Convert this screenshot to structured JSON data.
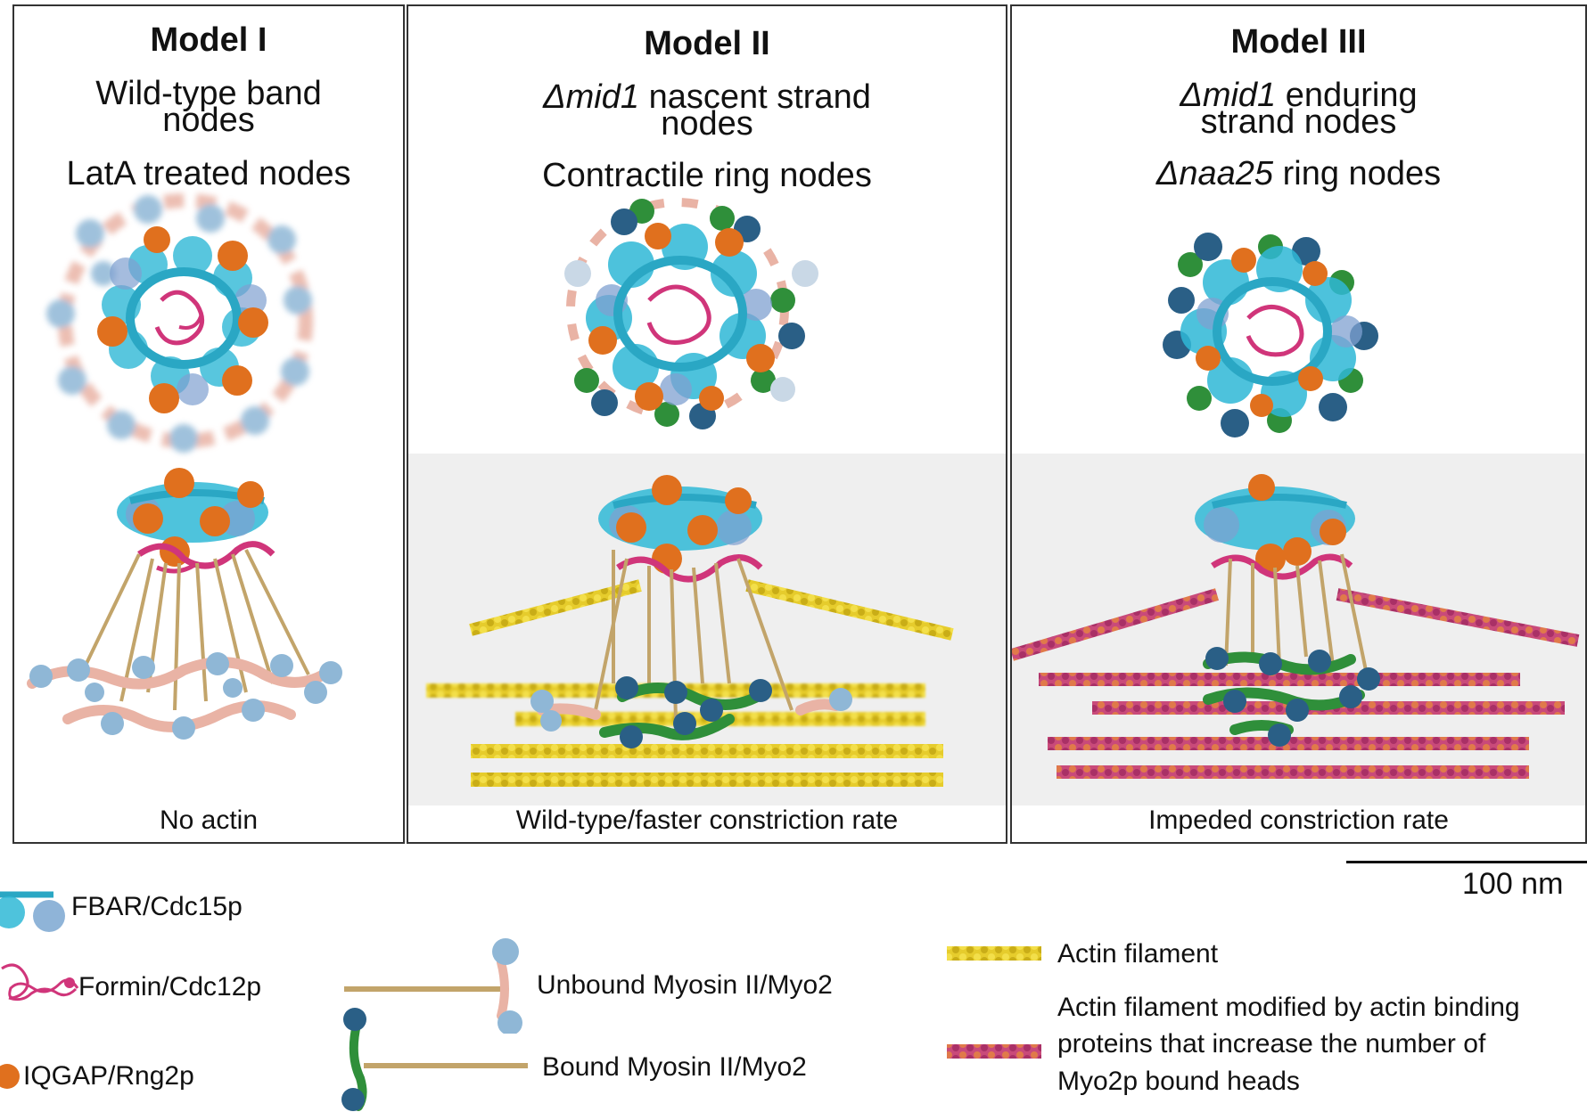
{
  "panels": [
    {
      "title": "Model I",
      "line1": "Wild-type band",
      "line2": "nodes",
      "line3": "LatA treated nodes",
      "footer": "No actin"
    },
    {
      "title": "Model II",
      "line1_gene": "Δmid1",
      "line1_rest": " nascent strand",
      "line2": "nodes",
      "line3": "Contractile ring nodes",
      "footer": "Wild-type/faster constriction rate"
    },
    {
      "title": "Model III",
      "line1_gene": "Δmid1",
      "line1_rest": " enduring",
      "line2": "strand nodes",
      "line3_gene": "Δnaa25",
      "line3_rest": " ring nodes",
      "footer": "Impeded constriction rate"
    }
  ],
  "scale_bar": {
    "label": "100 nm"
  },
  "legend": {
    "fbar": "FBAR/Cdc15p",
    "formin": "Formin/Cdc12p",
    "iqgap": "IQGAP/Rng2p",
    "unbound_myosin": "Unbound Myosin II/Myo2",
    "bound_myosin": "Bound Myosin II/Myo2",
    "actin": "Actin filament",
    "modified_actin_1": "Actin filament modified by actin binding",
    "modified_actin_2": "proteins that increase the number of",
    "modified_actin_3": "Myo2p bound heads"
  },
  "colors": {
    "fbar": "#2fb8d6",
    "fbar_sphere": "#8fb4d8",
    "formin": "#d0357a",
    "iqgap": "#e0701e",
    "myosin_tail": "#c2a46a",
    "myosin_unbound_neck": "#e9b3a5",
    "myosin_head_unbound": "#8fb7d6",
    "myosin_bound_neck": "#2f8f3a",
    "myosin_head_bound": "#2a5f86",
    "actin": "#e8cf2a",
    "actin_modified": "#c94a7a"
  }
}
